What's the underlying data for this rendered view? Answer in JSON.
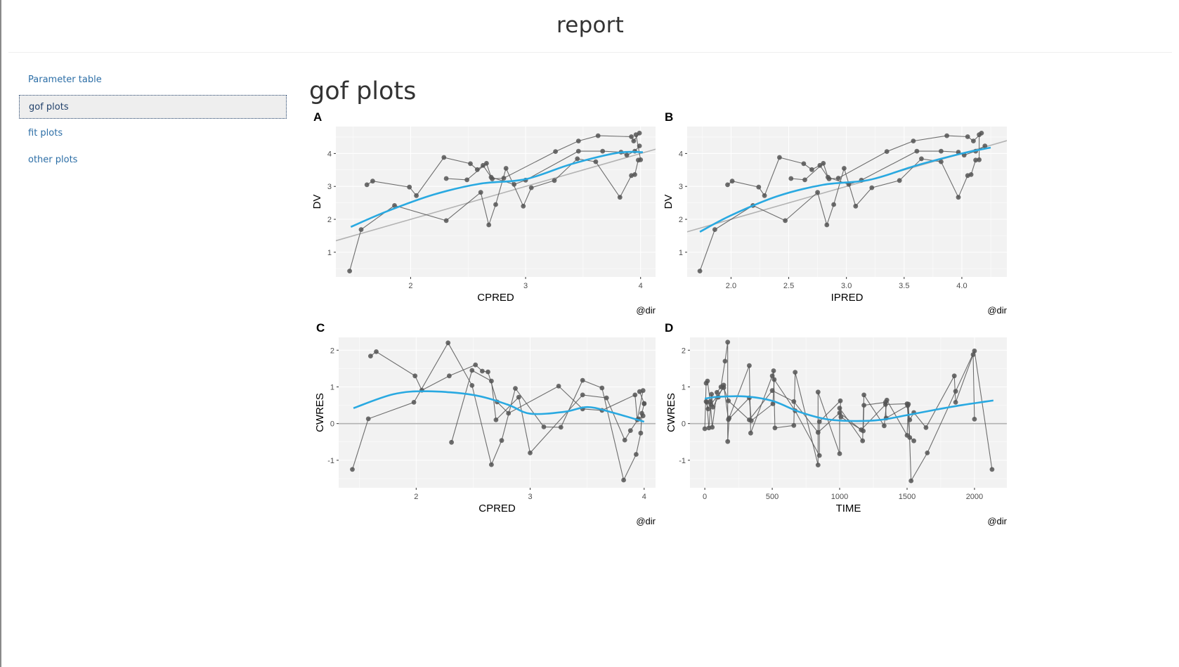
{
  "header": {
    "title": "report"
  },
  "toc": {
    "items": [
      {
        "label": "Parameter table",
        "active": false
      },
      {
        "label": "gof plots",
        "active": true
      },
      {
        "label": "fit plots",
        "active": false
      },
      {
        "label": "other plots",
        "active": false
      }
    ]
  },
  "section": {
    "title": "gof plots"
  },
  "colors": {
    "panel_bg": "#f2f2f2",
    "grid": "#ffffff",
    "points": "#555555",
    "smooth": "#29a9e1",
    "reference": "#b3b3b3"
  },
  "chart_data": [
    {
      "tag": "A",
      "type": "scatter",
      "xlabel": "CPRED",
      "ylabel": "DV",
      "caption": "@dir",
      "xlim": [
        1.35,
        4.13
      ],
      "ylim": [
        0.25,
        4.82
      ],
      "xticks": [
        2,
        3,
        4
      ],
      "xtick_labels": [
        "2",
        "3",
        "4"
      ],
      "yticks": [
        1,
        2,
        3,
        4
      ],
      "ytick_labels": [
        "1",
        "2",
        "3",
        "4"
      ],
      "reference_line": {
        "type": "identity"
      },
      "points": [
        [
          1.47,
          0.43
        ],
        [
          1.57,
          1.69
        ],
        [
          1.86,
          2.42
        ],
        [
          2.31,
          1.96
        ],
        [
          2.61,
          2.82
        ],
        [
          2.68,
          1.83
        ],
        [
          2.74,
          2.45
        ],
        [
          2.83,
          3.55
        ],
        [
          2.98,
          2.4
        ],
        [
          3.05,
          2.96
        ],
        [
          3.25,
          3.18
        ],
        [
          3.45,
          3.84
        ],
        [
          3.61,
          3.75
        ],
        [
          3.82,
          2.67
        ],
        [
          3.92,
          3.33
        ],
        [
          3.95,
          3.36
        ],
        [
          3.98,
          3.8
        ],
        [
          4.0,
          3.81
        ],
        [
          3.96,
          4.57
        ],
        [
          1.62,
          3.05
        ],
        [
          1.67,
          3.16
        ],
        [
          1.99,
          2.98
        ],
        [
          2.05,
          2.72
        ],
        [
          2.29,
          3.88
        ],
        [
          2.52,
          3.69
        ],
        [
          2.58,
          3.51
        ],
        [
          2.63,
          3.64
        ],
        [
          2.71,
          3.23
        ],
        [
          2.81,
          3.25
        ],
        [
          3.26,
          4.06
        ],
        [
          3.46,
          4.38
        ],
        [
          3.63,
          4.54
        ],
        [
          3.92,
          4.51
        ],
        [
          3.94,
          4.38
        ],
        [
          3.99,
          4.62
        ],
        [
          2.31,
          3.24
        ],
        [
          2.49,
          3.2
        ],
        [
          2.66,
          3.7
        ],
        [
          2.7,
          3.28
        ],
        [
          2.9,
          3.06
        ],
        [
          3.0,
          3.19
        ],
        [
          3.46,
          4.07
        ],
        [
          3.67,
          4.07
        ],
        [
          3.83,
          4.04
        ],
        [
          3.88,
          3.95
        ],
        [
          3.95,
          4.07
        ],
        [
          3.99,
          4.23
        ]
      ],
      "smooth": [
        [
          1.48,
          1.77
        ],
        [
          1.8,
          2.25
        ],
        [
          2.2,
          2.75
        ],
        [
          2.6,
          3.08
        ],
        [
          3.0,
          3.22
        ],
        [
          3.4,
          3.68
        ],
        [
          3.8,
          4.02
        ],
        [
          4.02,
          4.04
        ]
      ]
    },
    {
      "tag": "B",
      "type": "scatter",
      "xlabel": "IPRED",
      "ylabel": "DV",
      "caption": "@dir",
      "xlim": [
        1.62,
        4.39
      ],
      "ylim": [
        0.25,
        4.82
      ],
      "xticks": [
        2.0,
        2.5,
        3.0,
        3.5,
        4.0
      ],
      "xtick_labels": [
        "2.0",
        "2.5",
        "3.0",
        "3.5",
        "4.0"
      ],
      "yticks": [
        1,
        2,
        3,
        4
      ],
      "ytick_labels": [
        "1",
        "2",
        "3",
        "4"
      ],
      "reference_line": {
        "type": "identity"
      },
      "points": [
        [
          1.73,
          0.43
        ],
        [
          1.86,
          1.69
        ],
        [
          2.19,
          2.42
        ],
        [
          2.47,
          1.96
        ],
        [
          2.75,
          2.82
        ],
        [
          2.83,
          1.83
        ],
        [
          2.89,
          2.45
        ],
        [
          2.98,
          3.55
        ],
        [
          3.08,
          2.4
        ],
        [
          3.22,
          2.96
        ],
        [
          3.46,
          3.18
        ],
        [
          3.65,
          3.84
        ],
        [
          3.82,
          3.75
        ],
        [
          3.97,
          2.67
        ],
        [
          4.05,
          3.33
        ],
        [
          4.08,
          3.36
        ],
        [
          4.12,
          3.8
        ],
        [
          4.15,
          3.81
        ],
        [
          4.15,
          4.57
        ],
        [
          1.97,
          3.05
        ],
        [
          2.01,
          3.16
        ],
        [
          2.24,
          2.98
        ],
        [
          2.29,
          2.72
        ],
        [
          2.42,
          3.88
        ],
        [
          2.63,
          3.69
        ],
        [
          2.7,
          3.51
        ],
        [
          2.77,
          3.64
        ],
        [
          2.85,
          3.23
        ],
        [
          2.93,
          3.25
        ],
        [
          3.35,
          4.06
        ],
        [
          3.58,
          4.38
        ],
        [
          3.87,
          4.54
        ],
        [
          4.05,
          4.51
        ],
        [
          4.1,
          4.38
        ],
        [
          4.17,
          4.62
        ],
        [
          2.52,
          3.24
        ],
        [
          2.64,
          3.2
        ],
        [
          2.8,
          3.7
        ],
        [
          2.84,
          3.28
        ],
        [
          3.02,
          3.06
        ],
        [
          3.13,
          3.19
        ],
        [
          3.61,
          4.07
        ],
        [
          3.82,
          4.07
        ],
        [
          3.97,
          4.04
        ],
        [
          4.02,
          3.95
        ],
        [
          4.12,
          4.07
        ],
        [
          4.2,
          4.23
        ]
      ],
      "smooth": [
        [
          1.73,
          1.62
        ],
        [
          2.0,
          2.12
        ],
        [
          2.4,
          2.7
        ],
        [
          2.8,
          3.05
        ],
        [
          3.2,
          3.2
        ],
        [
          3.6,
          3.63
        ],
        [
          4.0,
          4.0
        ],
        [
          4.25,
          4.18
        ]
      ]
    },
    {
      "tag": "C",
      "type": "scatter",
      "xlabel": "CPRED",
      "ylabel": "CWRES",
      "caption": "@dir",
      "xlim": [
        1.32,
        4.1
      ],
      "ylim": [
        -1.75,
        2.35
      ],
      "xticks": [
        2,
        3,
        4
      ],
      "xtick_labels": [
        "2",
        "3",
        "4"
      ],
      "yticks": [
        -1,
        0,
        1,
        2
      ],
      "ytick_labels": [
        "-1",
        "0",
        "1",
        "2"
      ],
      "reference_line": {
        "type": "horizontal",
        "y": 0
      },
      "points": [
        [
          1.44,
          -1.25
        ],
        [
          1.58,
          0.13
        ],
        [
          1.98,
          0.58
        ],
        [
          2.28,
          2.2
        ],
        [
          2.49,
          1.04
        ],
        [
          2.66,
          -1.12
        ],
        [
          2.75,
          -0.46
        ],
        [
          2.87,
          0.96
        ],
        [
          3.12,
          -0.09
        ],
        [
          3.27,
          -0.1
        ],
        [
          3.46,
          1.18
        ],
        [
          3.63,
          0.97
        ],
        [
          3.82,
          -1.54
        ],
        [
          3.93,
          -0.84
        ],
        [
          3.97,
          -0.26
        ],
        [
          3.98,
          0.28
        ],
        [
          4.0,
          0.54
        ],
        [
          4.0,
          0.55
        ],
        [
          3.96,
          0.87
        ],
        [
          1.6,
          1.84
        ],
        [
          1.65,
          1.96
        ],
        [
          1.99,
          1.3
        ],
        [
          2.05,
          0.91
        ],
        [
          2.29,
          1.3
        ],
        [
          2.52,
          1.6
        ],
        [
          2.58,
          1.43
        ],
        [
          2.63,
          1.41
        ],
        [
          2.71,
          0.59
        ],
        [
          2.81,
          0.28
        ],
        [
          3.25,
          1.02
        ],
        [
          3.46,
          0.4
        ],
        [
          3.63,
          0.36
        ],
        [
          3.92,
          0.78
        ],
        [
          3.94,
          0.1
        ],
        [
          3.99,
          0.9
        ],
        [
          2.31,
          -0.51
        ],
        [
          2.49,
          1.45
        ],
        [
          2.66,
          1.16
        ],
        [
          2.7,
          0.1
        ],
        [
          2.9,
          0.72
        ],
        [
          3.0,
          -0.8
        ],
        [
          3.46,
          0.78
        ],
        [
          3.67,
          0.7
        ],
        [
          3.83,
          -0.45
        ],
        [
          3.88,
          -0.19
        ],
        [
          3.95,
          0.13
        ],
        [
          3.99,
          0.21
        ]
      ],
      "smooth": [
        [
          1.45,
          0.42
        ],
        [
          1.8,
          0.8
        ],
        [
          2.1,
          0.88
        ],
        [
          2.5,
          0.78
        ],
        [
          2.8,
          0.52
        ],
        [
          3.0,
          0.27
        ],
        [
          3.3,
          0.32
        ],
        [
          3.5,
          0.45
        ],
        [
          3.7,
          0.32
        ],
        [
          4.0,
          0.05
        ]
      ]
    },
    {
      "tag": "D",
      "type": "scatter",
      "xlabel": "TIME",
      "ylabel": "CWRES",
      "caption": "@dir",
      "xlim": [
        -110,
        2240
      ],
      "ylim": [
        -1.75,
        2.35
      ],
      "xticks": [
        0,
        500,
        1000,
        1500,
        2000
      ],
      "xtick_labels": [
        "0",
        "500",
        "1000",
        "1500",
        "2000"
      ],
      "yticks": [
        -1,
        0,
        1,
        2
      ],
      "ytick_labels": [
        "-1",
        "0",
        "1",
        "2"
      ],
      "reference_line": {
        "type": "horizontal",
        "y": 0
      },
      "points": [
        [
          0,
          -0.14
        ],
        [
          10,
          1.1
        ],
        [
          20,
          1.16
        ],
        [
          40,
          0.6
        ],
        [
          55,
          -0.1
        ],
        [
          90,
          0.85
        ],
        [
          120,
          1.0
        ],
        [
          150,
          1.7
        ],
        [
          170,
          2.22
        ],
        [
          170,
          -0.49
        ],
        [
          180,
          0.15
        ],
        [
          330,
          1.58
        ],
        [
          340,
          -0.26
        ],
        [
          500,
          1.3
        ],
        [
          510,
          1.44
        ],
        [
          520,
          -0.12
        ],
        [
          660,
          -0.05
        ],
        [
          670,
          1.4
        ],
        [
          840,
          -1.13
        ],
        [
          840,
          0.86
        ],
        [
          1000,
          -0.82
        ],
        [
          1000,
          0.42
        ],
        [
          1170,
          -0.47
        ],
        [
          1180,
          0.78
        ],
        [
          1330,
          -0.06
        ],
        [
          1350,
          0.64
        ],
        [
          1500,
          -0.32
        ],
        [
          1510,
          0.53
        ],
        [
          1530,
          -1.56
        ],
        [
          1650,
          -0.8
        ],
        [
          1860,
          0.88
        ],
        [
          2000,
          1.98
        ],
        [
          2130,
          -1.25
        ],
        [
          15,
          0.58
        ],
        [
          30,
          -0.12
        ],
        [
          50,
          0.8
        ],
        [
          60,
          0.45
        ],
        [
          100,
          0.72
        ],
        [
          140,
          1.05
        ],
        [
          175,
          0.11
        ],
        [
          330,
          0.7
        ],
        [
          345,
          0.08
        ],
        [
          505,
          0.54
        ],
        [
          515,
          1.2
        ],
        [
          670,
          0.35
        ],
        [
          850,
          -0.87
        ],
        [
          850,
          0.05
        ],
        [
          1005,
          0.62
        ],
        [
          1010,
          0.18
        ],
        [
          1175,
          -0.2
        ],
        [
          1180,
          0.5
        ],
        [
          1340,
          0.58
        ],
        [
          1345,
          0.15
        ],
        [
          1505,
          0.49
        ],
        [
          1520,
          0.1
        ],
        [
          1550,
          0.3
        ],
        [
          1640,
          -0.11
        ],
        [
          1850,
          1.3
        ],
        [
          1860,
          0.58
        ],
        [
          1990,
          1.88
        ],
        [
          2000,
          0.12
        ],
        [
          10,
          0.6
        ],
        [
          25,
          0.4
        ],
        [
          45,
          0.52
        ],
        [
          140,
          0.98
        ],
        [
          175,
          0.62
        ],
        [
          330,
          0.1
        ],
        [
          500,
          0.9
        ],
        [
          660,
          0.6
        ],
        [
          840,
          -0.24
        ],
        [
          1000,
          0.29
        ],
        [
          1160,
          -0.17
        ],
        [
          1340,
          0.52
        ],
        [
          1500,
          0.54
        ],
        [
          1520,
          -0.38
        ],
        [
          1550,
          -0.47
        ]
      ],
      "smooth": [
        [
          0,
          0.68
        ],
        [
          100,
          0.73
        ],
        [
          300,
          0.74
        ],
        [
          500,
          0.62
        ],
        [
          700,
          0.32
        ],
        [
          900,
          0.12
        ],
        [
          1100,
          0.07
        ],
        [
          1300,
          0.1
        ],
        [
          1500,
          0.23
        ],
        [
          1700,
          0.37
        ],
        [
          1900,
          0.5
        ],
        [
          2140,
          0.63
        ]
      ]
    }
  ]
}
